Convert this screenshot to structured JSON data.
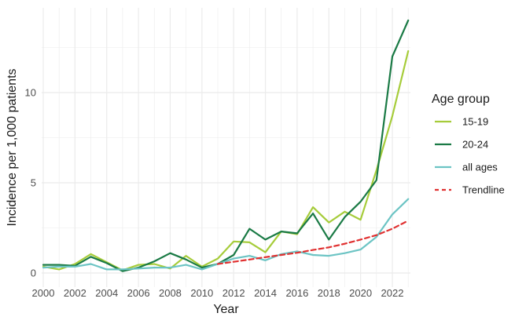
{
  "chart_data": {
    "type": "line",
    "xlabel": "Year",
    "ylabel": "Incidence per 1,000 patients",
    "xlim": [
      2000,
      2023
    ],
    "ylim": [
      0,
      14
    ],
    "x_ticks": [
      2000,
      2002,
      2004,
      2006,
      2008,
      2010,
      2012,
      2014,
      2016,
      2018,
      2020,
      2022
    ],
    "y_ticks": [
      0,
      5,
      10
    ],
    "grid": true,
    "legend": {
      "title": "Age group",
      "position": "right"
    },
    "x": [
      2000,
      2001,
      2002,
      2003,
      2004,
      2005,
      2006,
      2007,
      2008,
      2009,
      2010,
      2011,
      2012,
      2013,
      2014,
      2015,
      2016,
      2017,
      2018,
      2019,
      2020,
      2021,
      2022,
      2023
    ],
    "series": [
      {
        "name": "15-19",
        "color": "#a6cc3a",
        "dash": "solid",
        "x": [
          2000,
          2001,
          2002,
          2003,
          2004,
          2005,
          2006,
          2007,
          2008,
          2009,
          2010,
          2011,
          2012,
          2013,
          2014,
          2015,
          2016,
          2017,
          2018,
          2019,
          2020,
          2021,
          2022,
          2023
        ],
        "values": [
          0.35,
          0.2,
          0.5,
          1.05,
          0.6,
          0.15,
          0.45,
          0.5,
          0.25,
          0.95,
          0.35,
          0.8,
          1.75,
          1.7,
          1.15,
          2.3,
          2.15,
          3.65,
          2.8,
          3.4,
          2.95,
          5.7,
          8.7,
          12.3
        ]
      },
      {
        "name": "20-24",
        "color": "#1a7a45",
        "dash": "solid",
        "x": [
          2000,
          2001,
          2002,
          2003,
          2004,
          2005,
          2006,
          2007,
          2008,
          2009,
          2010,
          2011,
          2012,
          2013,
          2014,
          2015,
          2016,
          2017,
          2018,
          2019,
          2020,
          2021,
          2022,
          2023
        ],
        "values": [
          0.45,
          0.45,
          0.4,
          0.9,
          0.55,
          0.1,
          0.3,
          0.65,
          1.1,
          0.75,
          0.3,
          0.5,
          1.0,
          2.45,
          1.85,
          2.3,
          2.2,
          3.3,
          1.85,
          3.1,
          3.95,
          5.15,
          12.0,
          14.0
        ]
      },
      {
        "name": "all ages",
        "color": "#6cc4c4",
        "dash": "solid",
        "x": [
          2000,
          2001,
          2002,
          2003,
          2004,
          2005,
          2006,
          2007,
          2008,
          2009,
          2010,
          2011,
          2012,
          2013,
          2014,
          2015,
          2016,
          2017,
          2018,
          2019,
          2020,
          2021,
          2022,
          2023
        ],
        "values": [
          0.3,
          0.35,
          0.35,
          0.5,
          0.2,
          0.2,
          0.25,
          0.3,
          0.3,
          0.45,
          0.2,
          0.5,
          0.8,
          0.95,
          0.7,
          1.05,
          1.2,
          1.0,
          0.95,
          1.1,
          1.3,
          2.0,
          3.25,
          4.1
        ]
      },
      {
        "name": "Trendline",
        "color": "#e03030",
        "dash": "dashed",
        "x": [
          2011,
          2012,
          2013,
          2014,
          2015,
          2016,
          2017,
          2018,
          2019,
          2020,
          2021,
          2022,
          2023
        ],
        "values": [
          0.5,
          0.62,
          0.75,
          0.88,
          1.0,
          1.12,
          1.28,
          1.42,
          1.62,
          1.85,
          2.1,
          2.45,
          2.9
        ]
      }
    ]
  }
}
